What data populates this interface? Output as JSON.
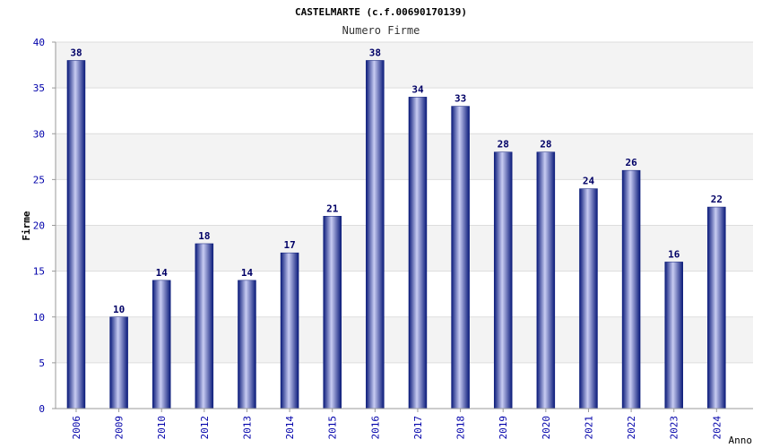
{
  "chart_data": {
    "type": "bar",
    "title": "CASTELMARTE (c.f.00690170139)",
    "subtitle": "Numero Firme",
    "xlabel": "Anno",
    "ylabel": "Firme",
    "ylim": [
      0,
      40
    ],
    "yticks": [
      0,
      5,
      10,
      15,
      20,
      25,
      30,
      35,
      40
    ],
    "grid": true,
    "categories": [
      "2006",
      "2009",
      "2010",
      "2012",
      "2013",
      "2014",
      "2015",
      "2016",
      "2017",
      "2018",
      "2019",
      "2020",
      "2021",
      "2022",
      "2023",
      "2024"
    ],
    "values": [
      38,
      10,
      14,
      18,
      14,
      17,
      21,
      38,
      34,
      33,
      28,
      28,
      24,
      26,
      16,
      22
    ],
    "colors": {
      "bar_dark": "#0a1a7a",
      "bar_light": "#c8ccf2",
      "label": "#000066",
      "axis_text": "#0000aa",
      "band": "#f3f3f3",
      "grid": "#dddddd"
    }
  }
}
